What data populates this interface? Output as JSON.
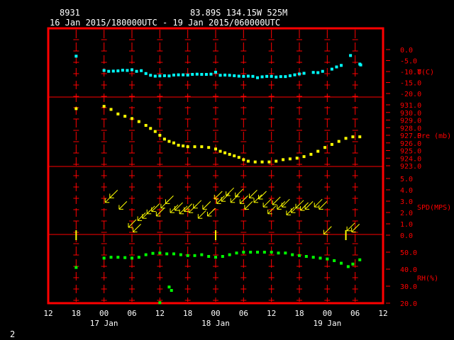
{
  "header": {
    "station_id": "8931",
    "location": "83.89S  134.15W   525M",
    "time_range": "16 Jan 2015/180000UTC - 19 Jan 2015/060000UTC"
  },
  "page_number": "2",
  "colors": {
    "frame": "#ff0000",
    "temperature": "#00ffff",
    "pressure": "#ffff00",
    "wind": "#ffff00",
    "humidity": "#00ff00",
    "axis_text": "#ffffff",
    "scale_text": "#ff0000"
  },
  "chart_data": {
    "type": "scatter",
    "x_axis": {
      "unit": "hours",
      "range": [
        -12,
        60
      ],
      "tick_labels": [
        "12",
        "18",
        "00",
        "06",
        "12",
        "18",
        "00",
        "06",
        "12",
        "18",
        "00",
        "06",
        "12"
      ],
      "day_labels": [
        {
          "hour": 0,
          "label": "17 Jan"
        },
        {
          "hour": 24,
          "label": "18 Jan"
        },
        {
          "hour": 48,
          "label": "19 Jan"
        }
      ]
    },
    "panels": [
      {
        "name": "temperature",
        "label": "T(C)",
        "ylim": [
          -20,
          0
        ],
        "tick_labels": [
          "0.0",
          "-5.0",
          "-10.0",
          "-15.0",
          "-20.0"
        ],
        "tick_values": [
          0,
          -5,
          -10,
          -15,
          -20
        ],
        "points": [
          [
            -6,
            -3
          ],
          [
            0,
            -9.5
          ],
          [
            1,
            -9.9
          ],
          [
            2,
            -9.8
          ],
          [
            3,
            -9.7
          ],
          [
            4,
            -9.4
          ],
          [
            5,
            -9.5
          ],
          [
            6,
            -9.2
          ],
          [
            7,
            -9.9
          ],
          [
            8,
            -9.6
          ],
          [
            9,
            -10.9
          ],
          [
            10,
            -11.7
          ],
          [
            11,
            -12.1
          ],
          [
            12,
            -12
          ],
          [
            13,
            -11.9
          ],
          [
            14,
            -12
          ],
          [
            15,
            -11.6
          ],
          [
            16,
            -11.5
          ],
          [
            17,
            -11.5
          ],
          [
            18,
            -11.6
          ],
          [
            19,
            -11.3
          ],
          [
            20,
            -11.2
          ],
          [
            21,
            -11.3
          ],
          [
            22,
            -11.3
          ],
          [
            23,
            -11.2
          ],
          [
            24,
            -10.3
          ],
          [
            25,
            -11.7
          ],
          [
            26,
            -11.6
          ],
          [
            27,
            -11.7
          ],
          [
            28,
            -11.9
          ],
          [
            29,
            -12.1
          ],
          [
            30,
            -12.2
          ],
          [
            31,
            -12.1
          ],
          [
            32,
            -12.2
          ],
          [
            33,
            -12.8
          ],
          [
            34,
            -12.4
          ],
          [
            35,
            -12.2
          ],
          [
            36,
            -12.2
          ],
          [
            37,
            -12.5
          ],
          [
            38,
            -12.3
          ],
          [
            39,
            -12.3
          ],
          [
            40,
            -11.9
          ],
          [
            41,
            -11.5
          ],
          [
            42,
            -11.1
          ],
          [
            43,
            -10.8
          ],
          [
            45,
            -10.4
          ],
          [
            46,
            -10.5
          ],
          [
            47,
            -9.9
          ],
          [
            49,
            -8.9
          ],
          [
            50,
            -7.9
          ],
          [
            51,
            -7.2
          ],
          [
            53,
            -2.7
          ],
          [
            55,
            -6.6
          ],
          [
            55.2,
            -7
          ]
        ]
      },
      {
        "name": "pressure",
        "label": "Pre (mb)",
        "ylim": [
          923,
          931
        ],
        "tick_labels": [
          "931.0",
          "930.0",
          "929.0",
          "928.0",
          "927.0",
          "926.0",
          "925.0",
          "924.0",
          "923.0"
        ],
        "tick_values": [
          931,
          930,
          929,
          928,
          927,
          926,
          925,
          924,
          923
        ],
        "points": [
          [
            -6,
            930.5
          ],
          [
            0,
            930.8
          ],
          [
            1.5,
            930.4
          ],
          [
            3,
            929.8
          ],
          [
            4.5,
            929.5
          ],
          [
            6,
            929.2
          ],
          [
            7.5,
            928.8
          ],
          [
            9,
            928.3
          ],
          [
            10,
            927.9
          ],
          [
            11,
            927.5
          ],
          [
            12,
            927.0
          ],
          [
            13,
            926.5
          ],
          [
            14,
            926.2
          ],
          [
            15,
            926.0
          ],
          [
            16,
            925.7
          ],
          [
            17,
            925.6
          ],
          [
            18,
            925.5
          ],
          [
            19.5,
            925.5
          ],
          [
            21,
            925.5
          ],
          [
            22.5,
            925.4
          ],
          [
            24,
            925.2
          ],
          [
            25,
            924.9
          ],
          [
            26,
            924.7
          ],
          [
            27,
            924.5
          ],
          [
            28,
            924.3
          ],
          [
            29,
            924.1
          ],
          [
            30,
            923.8
          ],
          [
            31,
            923.6
          ],
          [
            32.5,
            923.5
          ],
          [
            34,
            923.5
          ],
          [
            35.5,
            923.5
          ],
          [
            37,
            923.6
          ],
          [
            38.5,
            923.8
          ],
          [
            40,
            923.9
          ],
          [
            41.5,
            924.0
          ],
          [
            43,
            924.2
          ],
          [
            44.5,
            924.5
          ],
          [
            46,
            924.9
          ],
          [
            47.5,
            925.4
          ],
          [
            49,
            925.8
          ],
          [
            50.5,
            926.2
          ],
          [
            52,
            926.6
          ],
          [
            53.5,
            926.8
          ],
          [
            55,
            926.8
          ]
        ]
      },
      {
        "name": "wind",
        "label": "SPD(MPS)",
        "ylim": [
          0,
          5
        ],
        "tick_labels": [
          "5.0",
          "4.0",
          "3.0",
          "2.0",
          "1.0",
          "0.0"
        ],
        "tick_values": [
          5,
          4,
          3,
          2,
          1,
          0
        ],
        "points": [
          [
            -6,
            0
          ],
          [
            1,
            3.2
          ],
          [
            2,
            3.6
          ],
          [
            4,
            2.6
          ],
          [
            6,
            1
          ],
          [
            7,
            0.6
          ],
          [
            8,
            1.6
          ],
          [
            9,
            1.8
          ],
          [
            10,
            2.2
          ],
          [
            11,
            2.4
          ],
          [
            12,
            2
          ],
          [
            13,
            2.7
          ],
          [
            14,
            3.1
          ],
          [
            15,
            2.3
          ],
          [
            16,
            2.5
          ],
          [
            17,
            2.2
          ],
          [
            18,
            2.4
          ],
          [
            19,
            2.3
          ],
          [
            20,
            2.7
          ],
          [
            21,
            1.8
          ],
          [
            22,
            2.6
          ],
          [
            23,
            2
          ],
          [
            24,
            0
          ],
          [
            24.5,
            3.5
          ],
          [
            25,
            3.1
          ],
          [
            26,
            3.3
          ],
          [
            27,
            3.8
          ],
          [
            28,
            3.2
          ],
          [
            29,
            3.7
          ],
          [
            30,
            3.1
          ],
          [
            31,
            2.6
          ],
          [
            32,
            3.6
          ],
          [
            33,
            3.2
          ],
          [
            34,
            3.5
          ],
          [
            35,
            2.8
          ],
          [
            36,
            2.2
          ],
          [
            37,
            3
          ],
          [
            38,
            2.6
          ],
          [
            39,
            2.8
          ],
          [
            40,
            2.1
          ],
          [
            41,
            2.3
          ],
          [
            42,
            2.7
          ],
          [
            43,
            2.5
          ],
          [
            44,
            2.6
          ],
          [
            46,
            2.8
          ],
          [
            47,
            2.6
          ],
          [
            48,
            0.4
          ],
          [
            52,
            0
          ],
          [
            53,
            0.7
          ],
          [
            54,
            0.6
          ]
        ]
      },
      {
        "name": "humidity",
        "label": "RH(%)",
        "ylim": [
          20,
          50
        ],
        "tick_labels": [
          "50.0",
          "40.0",
          "30.0",
          "20.0"
        ],
        "tick_values": [
          50,
          40,
          30,
          20
        ],
        "points": [
          [
            -6,
            41
          ],
          [
            0,
            46.5
          ],
          [
            1.5,
            47
          ],
          [
            3,
            47
          ],
          [
            4.5,
            46.8
          ],
          [
            6,
            46.5
          ],
          [
            7.5,
            47
          ],
          [
            9,
            48.5
          ],
          [
            10.5,
            49.3
          ],
          [
            12,
            49.5
          ],
          [
            13.5,
            49
          ],
          [
            15,
            49
          ],
          [
            16.5,
            48.5
          ],
          [
            18,
            48
          ],
          [
            19.5,
            48
          ],
          [
            21,
            48.5
          ],
          [
            22.5,
            47.5
          ],
          [
            24,
            47
          ],
          [
            25.5,
            47.5
          ],
          [
            27,
            48.5
          ],
          [
            28.5,
            49.5
          ],
          [
            30,
            50
          ],
          [
            31.5,
            50
          ],
          [
            33,
            50
          ],
          [
            34.5,
            50
          ],
          [
            36,
            50
          ],
          [
            37.5,
            49.5
          ],
          [
            39,
            49.5
          ],
          [
            40.5,
            48.5
          ],
          [
            42,
            48
          ],
          [
            43.5,
            47.5
          ],
          [
            45,
            47
          ],
          [
            46.5,
            46.5
          ],
          [
            48,
            46
          ],
          [
            49.5,
            45
          ],
          [
            51,
            43.5
          ],
          [
            52.5,
            41.5
          ],
          [
            53.5,
            43
          ],
          [
            55,
            45.5
          ],
          [
            14,
            29.5
          ],
          [
            14.5,
            27.5
          ],
          [
            12,
            20.3
          ]
        ]
      }
    ]
  }
}
